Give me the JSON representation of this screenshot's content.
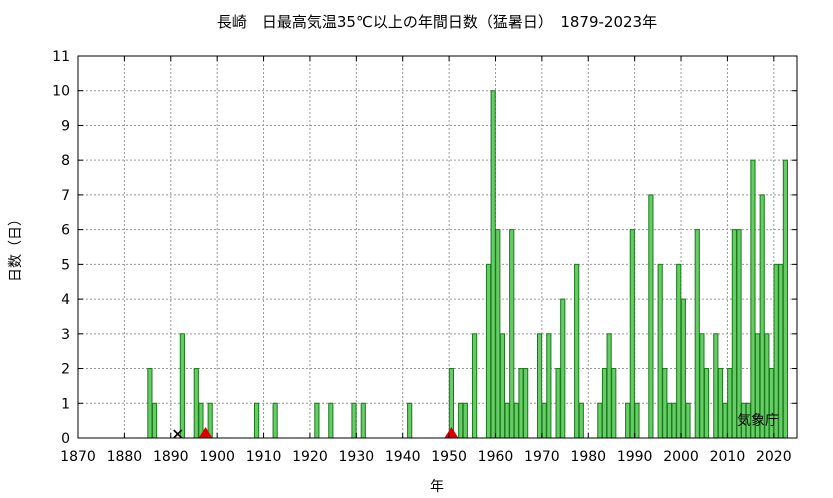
{
  "chart_data": {
    "type": "bar",
    "title": "長崎　日最高気温35℃以上の年間日数（猛暑日）　1879-2023年",
    "xlabel": "年",
    "ylabel": "日数（日）",
    "xlim": [
      1870,
      2025
    ],
    "ylim": [
      0,
      11
    ],
    "xticks": [
      1870,
      1880,
      1890,
      1900,
      1910,
      1920,
      1930,
      1940,
      1950,
      1960,
      1970,
      1980,
      1990,
      2000,
      2010,
      2020
    ],
    "yticks": [
      0,
      1,
      2,
      3,
      4,
      5,
      6,
      7,
      8,
      9,
      10,
      11
    ],
    "grid": true,
    "bar_color": "#66cc66",
    "bar_edge_color": "#1a7a1a",
    "source": "気象庁",
    "data": [
      {
        "year": 1885,
        "value": 2
      },
      {
        "year": 1886,
        "value": 1
      },
      {
        "year": 1892,
        "value": 3
      },
      {
        "year": 1895,
        "value": 2
      },
      {
        "year": 1896,
        "value": 1
      },
      {
        "year": 1897,
        "value": 0
      },
      {
        "year": 1898,
        "value": 1
      },
      {
        "year": 1908,
        "value": 1
      },
      {
        "year": 1912,
        "value": 1
      },
      {
        "year": 1921,
        "value": 1
      },
      {
        "year": 1924,
        "value": 1
      },
      {
        "year": 1929,
        "value": 1
      },
      {
        "year": 1931,
        "value": 1
      },
      {
        "year": 1941,
        "value": 1
      },
      {
        "year": 1950,
        "value": 2
      },
      {
        "year": 1952,
        "value": 1
      },
      {
        "year": 1953,
        "value": 1
      },
      {
        "year": 1955,
        "value": 3
      },
      {
        "year": 1958,
        "value": 5
      },
      {
        "year": 1959,
        "value": 10
      },
      {
        "year": 1960,
        "value": 6
      },
      {
        "year": 1961,
        "value": 3
      },
      {
        "year": 1962,
        "value": 1
      },
      {
        "year": 1963,
        "value": 6
      },
      {
        "year": 1964,
        "value": 1
      },
      {
        "year": 1965,
        "value": 2
      },
      {
        "year": 1966,
        "value": 2
      },
      {
        "year": 1969,
        "value": 3
      },
      {
        "year": 1970,
        "value": 1
      },
      {
        "year": 1971,
        "value": 3
      },
      {
        "year": 1973,
        "value": 2
      },
      {
        "year": 1974,
        "value": 4
      },
      {
        "year": 1977,
        "value": 5
      },
      {
        "year": 1978,
        "value": 1
      },
      {
        "year": 1982,
        "value": 1
      },
      {
        "year": 1983,
        "value": 2
      },
      {
        "year": 1984,
        "value": 3
      },
      {
        "year": 1985,
        "value": 2
      },
      {
        "year": 1988,
        "value": 1
      },
      {
        "year": 1989,
        "value": 6
      },
      {
        "year": 1990,
        "value": 1
      },
      {
        "year": 1993,
        "value": 7
      },
      {
        "year": 1995,
        "value": 5
      },
      {
        "year": 1996,
        "value": 2
      },
      {
        "year": 1997,
        "value": 1
      },
      {
        "year": 1998,
        "value": 1
      },
      {
        "year": 1999,
        "value": 5
      },
      {
        "year": 2000,
        "value": 4
      },
      {
        "year": 2001,
        "value": 1
      },
      {
        "year": 2003,
        "value": 6
      },
      {
        "year": 2004,
        "value": 3
      },
      {
        "year": 2005,
        "value": 2
      },
      {
        "year": 2007,
        "value": 3
      },
      {
        "year": 2008,
        "value": 2
      },
      {
        "year": 2009,
        "value": 1
      },
      {
        "year": 2010,
        "value": 2
      },
      {
        "year": 2011,
        "value": 6
      },
      {
        "year": 2012,
        "value": 6
      },
      {
        "year": 2013,
        "value": 1
      },
      {
        "year": 2014,
        "value": 1
      },
      {
        "year": 2015,
        "value": 8
      },
      {
        "year": 2016,
        "value": 3
      },
      {
        "year": 2017,
        "value": 7
      },
      {
        "year": 2018,
        "value": 3
      },
      {
        "year": 2019,
        "value": 2
      },
      {
        "year": 2020,
        "value": 5
      },
      {
        "year": 2021,
        "value": 5
      },
      {
        "year": 2022,
        "value": 8
      }
    ],
    "markers": [
      {
        "year": 1891,
        "shape": "cross",
        "color": "#000000"
      },
      {
        "year": 1897,
        "shape": "triangle",
        "color": "#dd0000"
      },
      {
        "year": 1950,
        "shape": "triangle",
        "color": "#dd0000"
      }
    ]
  }
}
